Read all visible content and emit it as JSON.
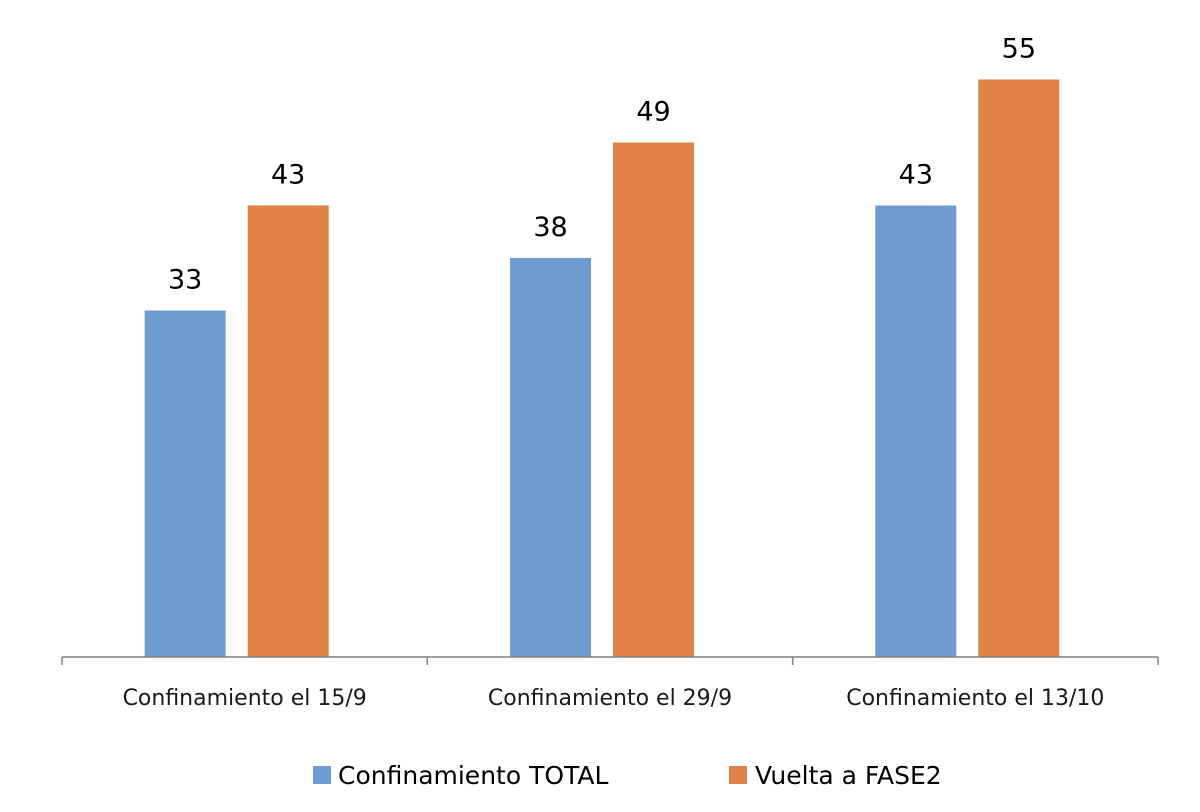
{
  "chart_data": {
    "type": "bar",
    "title": "",
    "xlabel": "",
    "ylabel": "",
    "categories": [
      "Confinamiento el 15/9",
      "Confinamiento el 29/9",
      "Confinamiento el 13/10"
    ],
    "series": [
      {
        "name": "Confinamiento TOTAL",
        "values": [
          33,
          38,
          43
        ],
        "color": "#6f9bd1"
      },
      {
        "name": "Vuelta a FASE2",
        "values": [
          43,
          49,
          55
        ],
        "color": "#df8245"
      }
    ],
    "ylim": [
      0,
      60
    ],
    "grid": false,
    "data_labels": true,
    "legend": "bottom"
  }
}
